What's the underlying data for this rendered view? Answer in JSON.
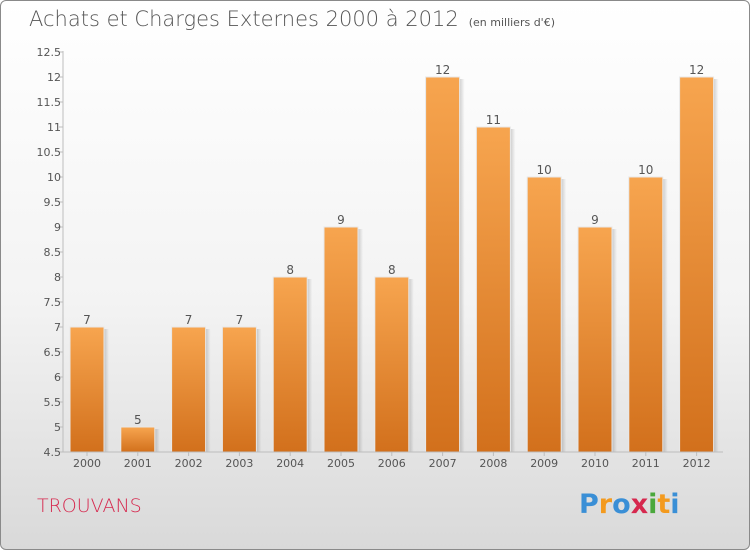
{
  "title": "Achats et Charges Externes 2000 à 2012",
  "subtitle": "(en milliers d'€)",
  "commune": "TROUVANS",
  "logo": {
    "letters": [
      "P",
      "r",
      "o",
      "x",
      "i",
      "t",
      "i"
    ],
    "colors": [
      "#3a8fd6",
      "#f39a1e",
      "#3a8fd6",
      "#d6284e",
      "#4aa83c",
      "#f39a1e",
      "#3a8fd6"
    ]
  },
  "colors": {
    "bar_top": "#f7a54f",
    "bar_bottom": "#d2701c",
    "title": "#555555",
    "commune": "#d6284e"
  },
  "chart_data": {
    "type": "bar",
    "title": "Achats et Charges Externes 2000 à 2012",
    "subtitle": "(en milliers d'€)",
    "categories": [
      "2000",
      "2001",
      "2002",
      "2003",
      "2004",
      "2005",
      "2006",
      "2007",
      "2008",
      "2009",
      "2010",
      "2011",
      "2012"
    ],
    "values": [
      7,
      5,
      7,
      7,
      8,
      9,
      8,
      12,
      11,
      10,
      9,
      10,
      12
    ],
    "ylim": [
      4.5,
      12.5
    ],
    "yticks": [
      "4.5",
      "5",
      "5.5",
      "6",
      "6.5",
      "7",
      "7.5",
      "8",
      "8.5",
      "9",
      "9.5",
      "10",
      "10.5",
      "11",
      "11.5",
      "12",
      "12.5"
    ],
    "grid": false,
    "data_labels": true
  }
}
